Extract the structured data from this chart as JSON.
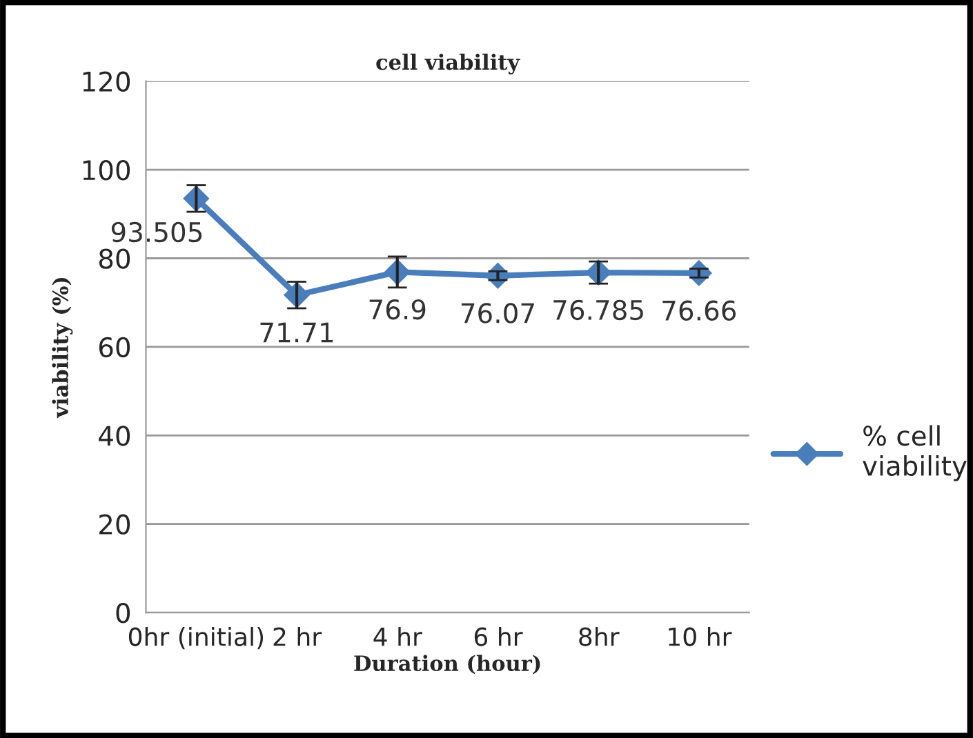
{
  "chart_data": {
    "type": "line",
    "title": "cell viability",
    "xlabel": "Duration (hour)",
    "ylabel": "viability (%)",
    "categories": [
      "0hr (initial)",
      "2 hr",
      "4 hr",
      "6 hr",
      "8hr",
      "10 hr"
    ],
    "series": [
      {
        "name": "% cell viability",
        "color": "#4a7ebb",
        "values": [
          93.505,
          71.71,
          76.9,
          76.07,
          76.785,
          76.66
        ],
        "errors": [
          3,
          3,
          3.5,
          1,
          2.5,
          1
        ]
      }
    ],
    "ylim": [
      0,
      120
    ],
    "yticks": [
      0,
      20,
      40,
      60,
      80,
      100,
      120
    ],
    "grid": "y",
    "legend": "right",
    "marker": "diamond",
    "line_style": "solid",
    "data_labels": true
  }
}
